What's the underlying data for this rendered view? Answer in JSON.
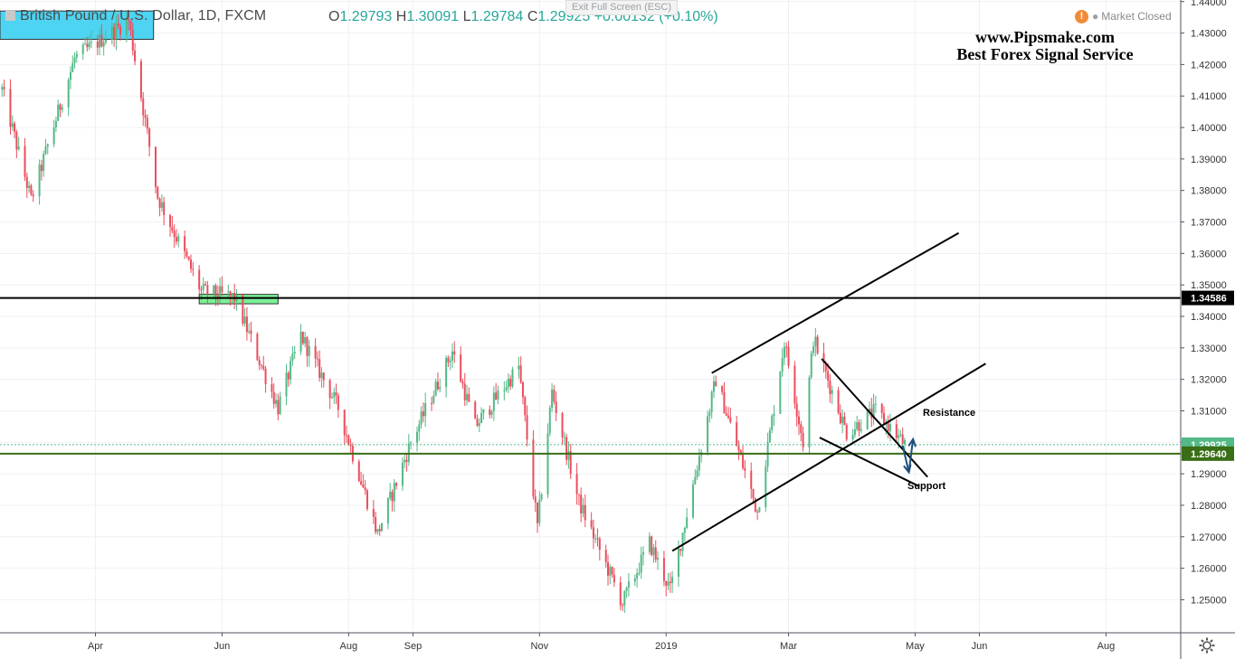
{
  "header": {
    "symbol_title": "British Pound / U.S. Dollar, 1D, FXCM",
    "open_label": "O",
    "open": "1.29793",
    "high_label": "H",
    "high": "1.30091",
    "low_label": "L",
    "low": "1.29784",
    "close_label": "C",
    "close": "1.29925",
    "change": "+0.00132 (+0.10%)",
    "exit_fullscreen": "Exit Full Screen (ESC)",
    "market_status": "Market Closed",
    "warning_glyph": "!"
  },
  "watermark": {
    "line1": "www.Pipsmake.com",
    "line2": "Best Forex Signal Service"
  },
  "annotations": {
    "resistance": "Resistance",
    "support": "Support"
  },
  "colors": {
    "up": "#53b987",
    "down": "#eb4d5c",
    "level_line": "#000000",
    "support_line": "#3a6e16",
    "price_line": "#53b987",
    "cyan_zone": "#4dd4f2",
    "green_zone": "#7bf097",
    "arrow": "#1f4e79"
  },
  "chart_data": {
    "type": "candlestick",
    "symbol": "GBPUSD",
    "timeframe": "1D",
    "price_range": [
      1.2395,
      1.4405
    ],
    "y_ticks": [
      "1.44000",
      "1.43000",
      "1.42000",
      "1.41000",
      "1.40000",
      "1.39000",
      "1.38000",
      "1.37000",
      "1.36000",
      "1.35000",
      "1.34000",
      "1.33000",
      "1.32000",
      "1.31000",
      "1.30000",
      "1.29000",
      "1.28000",
      "1.27000",
      "1.26000",
      "1.25000"
    ],
    "x_labels": [
      {
        "label": "Apr",
        "date": "2018-04-01"
      },
      {
        "label": "Jun",
        "date": "2018-06-01"
      },
      {
        "label": "Aug",
        "date": "2018-08-01"
      },
      {
        "label": "Sep",
        "date": "2018-09-01"
      },
      {
        "label": "Nov",
        "date": "2018-11-01"
      },
      {
        "label": "2019",
        "date": "2019-01-01"
      },
      {
        "label": "Mar",
        "date": "2019-03-01"
      },
      {
        "label": "May",
        "date": "2019-05-01"
      },
      {
        "label": "Jun",
        "date": "2019-06-01"
      },
      {
        "label": "Aug",
        "date": "2019-08-01"
      }
    ],
    "date_range": [
      "2018-02-14",
      "2019-09-06"
    ],
    "key_closes": [
      {
        "date": "2018-02-15",
        "price": 1.412
      },
      {
        "date": "2018-03-01",
        "price": 1.377
      },
      {
        "date": "2018-03-22",
        "price": 1.422
      },
      {
        "date": "2018-04-17",
        "price": 1.434
      },
      {
        "date": "2018-05-01",
        "price": 1.378
      },
      {
        "date": "2018-05-22",
        "price": 1.348
      },
      {
        "date": "2018-06-07",
        "price": 1.346
      },
      {
        "date": "2018-06-28",
        "price": 1.311
      },
      {
        "date": "2018-07-09",
        "price": 1.334
      },
      {
        "date": "2018-07-27",
        "price": 1.311
      },
      {
        "date": "2018-08-15",
        "price": 1.271
      },
      {
        "date": "2018-08-31",
        "price": 1.3
      },
      {
        "date": "2018-09-20",
        "price": 1.329
      },
      {
        "date": "2018-10-01",
        "price": 1.305
      },
      {
        "date": "2018-10-22",
        "price": 1.324
      },
      {
        "date": "2018-10-31",
        "price": 1.273
      },
      {
        "date": "2018-11-07",
        "price": 1.316
      },
      {
        "date": "2018-11-20",
        "price": 1.281
      },
      {
        "date": "2018-12-11",
        "price": 1.249
      },
      {
        "date": "2018-12-24",
        "price": 1.268
      },
      {
        "date": "2019-01-03",
        "price": 1.253
      },
      {
        "date": "2019-01-25",
        "price": 1.32
      },
      {
        "date": "2019-02-14",
        "price": 1.278
      },
      {
        "date": "2019-02-27",
        "price": 1.332
      },
      {
        "date": "2019-03-08",
        "price": 1.3
      },
      {
        "date": "2019-03-13",
        "price": 1.333
      },
      {
        "date": "2019-03-29",
        "price": 1.303
      },
      {
        "date": "2019-04-12",
        "price": 1.31
      },
      {
        "date": "2019-04-26",
        "price": 1.2993
      }
    ],
    "price_labels": [
      {
        "label": "1.34586",
        "price": 1.34586
      },
      {
        "label": "1.29925",
        "price": 1.29925
      },
      {
        "label": "1.29640",
        "price": 1.2964
      }
    ],
    "horizontal_lines": [
      {
        "name": "resistance-level",
        "price": 1.34586
      },
      {
        "name": "support-level",
        "price": 1.2964
      },
      {
        "name": "last-price",
        "price": 1.29925
      }
    ],
    "zones": [
      {
        "name": "supply-zone",
        "from": "2018-02-14",
        "to": "2018-04-29",
        "top": 1.437,
        "bottom": 1.428
      },
      {
        "name": "retest-zone",
        "from": "2018-05-21",
        "to": "2018-06-28",
        "top": 1.347,
        "bottom": 1.344
      }
    ],
    "trendlines": [
      {
        "name": "channel-upper",
        "from": {
          "date": "2019-01-23",
          "price": 1.322
        },
        "to": {
          "date": "2019-05-22",
          "price": 1.3665
        }
      },
      {
        "name": "channel-lower",
        "from": {
          "date": "2019-01-04",
          "price": 1.2655
        },
        "to": {
          "date": "2019-06-04",
          "price": 1.325
        }
      },
      {
        "name": "wedge-upper",
        "from": {
          "date": "2019-03-17",
          "price": 1.3265
        },
        "to": {
          "date": "2019-05-07",
          "price": 1.289
        }
      },
      {
        "name": "wedge-lower",
        "from": {
          "date": "2019-03-16",
          "price": 1.3015
        },
        "to": {
          "date": "2019-05-03",
          "price": 1.286
        }
      }
    ],
    "projection_arrows": [
      {
        "name": "arrow-down",
        "from": {
          "date": "2019-04-25",
          "price": 1.299
        },
        "to": {
          "date": "2019-04-28",
          "price": 1.2905
        }
      },
      {
        "name": "arrow-up",
        "from": {
          "date": "2019-04-28",
          "price": 1.2905
        },
        "to": {
          "date": "2019-04-30",
          "price": 1.301
        }
      }
    ]
  }
}
